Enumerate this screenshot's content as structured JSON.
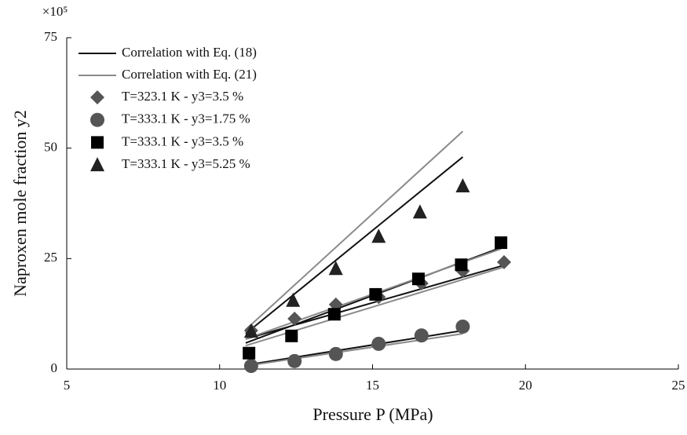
{
  "chart_data": {
    "type": "scatter",
    "y_multiplier": "×10⁵",
    "x_label": "Pressure P (MPa)",
    "y_label": "Naproxen mole fraction y2",
    "xlim": [
      5,
      25
    ],
    "xticks": [
      5,
      10,
      15,
      20,
      25
    ],
    "ylim": [
      0,
      75
    ],
    "yticks": [
      0,
      25,
      50,
      75
    ],
    "lines": [
      {
        "name": "Correlation with Eq. (18)",
        "color": "#111111",
        "segments": [
          {
            "x": [
              10.85,
              17.95
            ],
            "y": [
              8.0,
              48.0
            ]
          },
          {
            "x": [
              10.85,
              19.2
            ],
            "y": [
              5.9,
              27.5
            ]
          },
          {
            "x": [
              10.85,
              19.3
            ],
            "y": [
              6.8,
              23.5
            ]
          },
          {
            "x": [
              10.85,
              17.95
            ],
            "y": [
              0.9,
              8.7
            ]
          }
        ]
      },
      {
        "name": "Correlation with Eq. (21)",
        "color": "#8a8a8a",
        "segments": [
          {
            "x": [
              10.85,
              17.95
            ],
            "y": [
              8.9,
              53.8
            ]
          },
          {
            "x": [
              10.85,
              19.2
            ],
            "y": [
              6.8,
              27.2
            ]
          },
          {
            "x": [
              10.85,
              19.3
            ],
            "y": [
              5.3,
              23.1
            ]
          },
          {
            "x": [
              10.85,
              17.95
            ],
            "y": [
              0.7,
              8.0
            ]
          }
        ]
      }
    ],
    "series": [
      {
        "name": "T=323.1 K - y3=3.5 %",
        "marker": "diamond",
        "color": "#555555",
        "x": [
          11.03,
          12.45,
          13.8,
          15.2,
          16.6,
          17.95,
          19.3
        ],
        "values": [
          8.7,
          11.4,
          14.6,
          16.3,
          19.4,
          22.2,
          24.2
        ]
      },
      {
        "name": "T=333.1 K - y3=1.75 %",
        "marker": "circle",
        "color": "#555555",
        "x": [
          11.03,
          12.45,
          13.8,
          15.2,
          16.6,
          17.95
        ],
        "values": [
          0.7,
          1.8,
          3.4,
          5.7,
          7.6,
          9.6
        ]
      },
      {
        "name": "T=333.1 K - y3=3.5 %",
        "marker": "square",
        "color": "#000000",
        "x": [
          10.96,
          12.35,
          13.75,
          15.1,
          16.5,
          17.9,
          19.2
        ],
        "values": [
          3.6,
          7.5,
          12.4,
          16.9,
          20.4,
          23.6,
          28.6
        ]
      },
      {
        "name": "T=333.1 K - y3=5.25 %",
        "marker": "triangle",
        "color": "#222222",
        "x": [
          11.03,
          12.4,
          13.8,
          15.2,
          16.55,
          17.95
        ],
        "values": [
          8.5,
          15.5,
          22.7,
          30.0,
          35.5,
          41.4
        ]
      }
    ]
  }
}
